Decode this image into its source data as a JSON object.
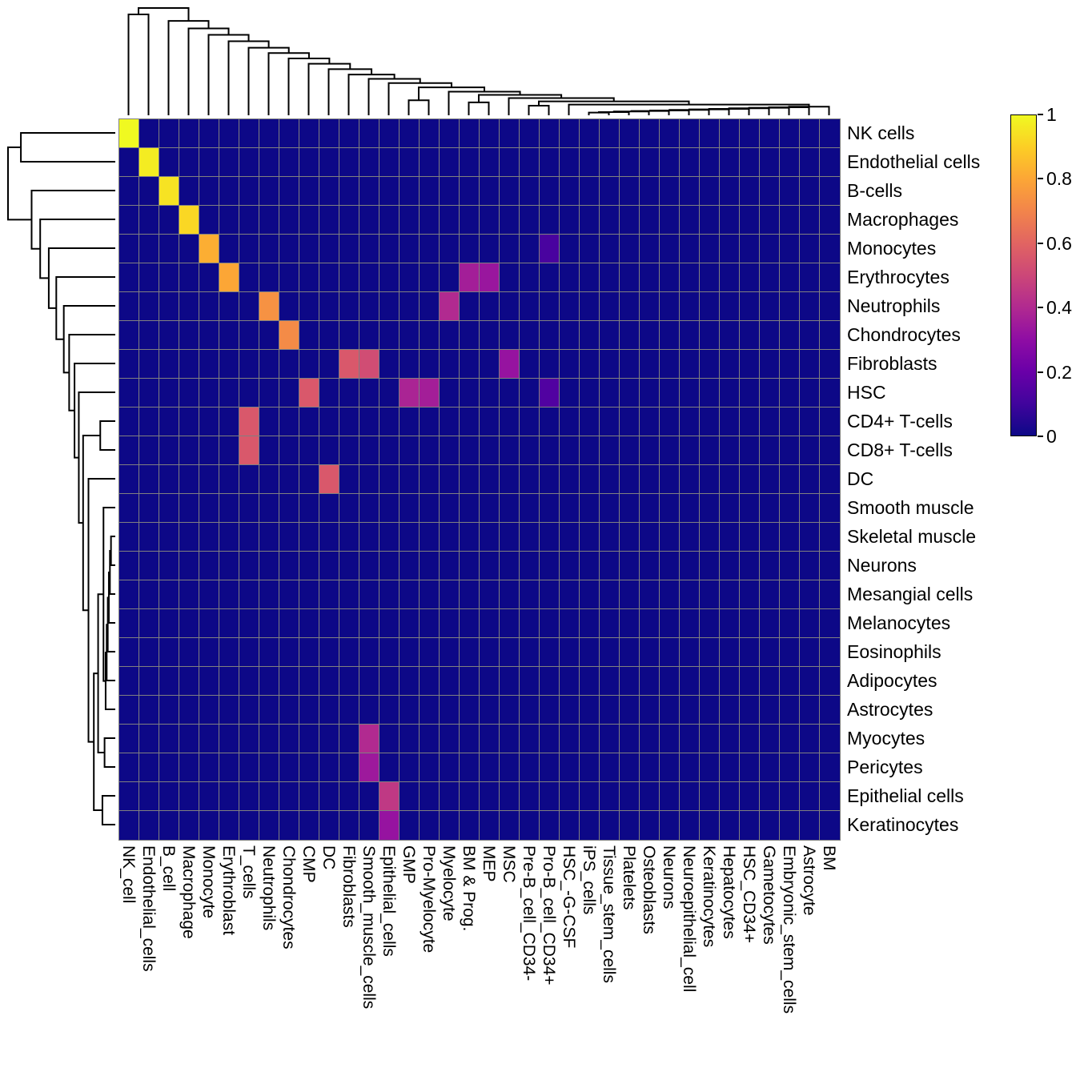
{
  "figure": {
    "background": "#ffffff",
    "text_color": "#000000"
  },
  "chart_data": {
    "type": "heatmap",
    "title": "",
    "xlabel": "",
    "ylabel": "",
    "rows": [
      "NK cells",
      "Endothelial cells",
      "B-cells",
      "Macrophages",
      "Monocytes",
      "Erythrocytes",
      "Neutrophils",
      "Chondrocytes",
      "Fibroblasts",
      "HSC",
      "CD4+ T-cells",
      "CD8+ T-cells",
      "DC",
      "Smooth muscle",
      "Skeletal muscle",
      "Neurons",
      "Mesangial cells",
      "Melanocytes",
      "Eosinophils",
      "Adipocytes",
      "Astrocytes",
      "Myocytes",
      "Pericytes",
      "Epithelial cells",
      "Keratinocytes"
    ],
    "columns": [
      "NK_cell",
      "Endothelial_cells",
      "B_cell",
      "Macrophage",
      "Monocyte",
      "Erythroblast",
      "T_cells",
      "Neutrophils",
      "Chondrocytes",
      "CMP",
      "DC",
      "Fibroblasts",
      "Smooth_muscle_cells",
      "Epithelial_cells",
      "GMP",
      "Pro-Myelocyte",
      "Myelocyte",
      "BM & Prog.",
      "MEP",
      "MSC",
      "Pre-B_cell_CD34-",
      "Pro-B_cell_CD34+",
      "HSC_-G-CSF",
      "iPS_cells",
      "Tissue_stem_cells",
      "Platelets",
      "Osteoblasts",
      "Neurons",
      "Neuroepithelial_cell",
      "Keratinocytes",
      "Hepatocytes",
      "HSC_CD34+",
      "Gametocytes",
      "Embryonic_stem_cells",
      "Astrocyte",
      "BM"
    ],
    "default_value": 0,
    "value_range": [
      0,
      1
    ],
    "cells": [
      [
        1,
        1,
        1.0
      ],
      [
        2,
        2,
        0.97
      ],
      [
        3,
        3,
        0.95
      ],
      [
        4,
        4,
        0.92
      ],
      [
        5,
        5,
        0.82
      ],
      [
        5,
        22,
        0.12
      ],
      [
        6,
        6,
        0.8
      ],
      [
        6,
        18,
        0.36
      ],
      [
        6,
        19,
        0.33
      ],
      [
        7,
        8,
        0.74
      ],
      [
        7,
        17,
        0.4
      ],
      [
        8,
        9,
        0.72
      ],
      [
        9,
        12,
        0.56
      ],
      [
        9,
        13,
        0.52
      ],
      [
        9,
        20,
        0.32
      ],
      [
        10,
        10,
        0.56
      ],
      [
        10,
        15,
        0.38
      ],
      [
        10,
        16,
        0.36
      ],
      [
        10,
        22,
        0.14
      ],
      [
        11,
        7,
        0.56
      ],
      [
        12,
        7,
        0.56
      ],
      [
        13,
        11,
        0.56
      ],
      [
        22,
        13,
        0.4
      ],
      [
        23,
        13,
        0.34
      ],
      [
        24,
        14,
        0.45
      ],
      [
        25,
        14,
        0.32
      ]
    ],
    "colormap": "plasma",
    "colormap_stops": [
      [
        0.0,
        "#0d0887"
      ],
      [
        0.1,
        "#41049d"
      ],
      [
        0.2,
        "#6a00a8"
      ],
      [
        0.3,
        "#8f0da4"
      ],
      [
        0.4,
        "#b12a90"
      ],
      [
        0.5,
        "#cc4778"
      ],
      [
        0.6,
        "#e16462"
      ],
      [
        0.7,
        "#f2844b"
      ],
      [
        0.8,
        "#fca636"
      ],
      [
        0.9,
        "#fcce25"
      ],
      [
        1.0,
        "#f0f921"
      ]
    ],
    "grid_color": "#808080",
    "dendrogram_color": "#000000",
    "colorbar": {
      "position": "right",
      "ticks": [
        {
          "value": 1,
          "label": "1"
        },
        {
          "value": 0.8,
          "label": "0.8"
        },
        {
          "value": 0.6,
          "label": "0.6"
        },
        {
          "value": 0.4,
          "label": "0.4"
        },
        {
          "value": 0.2,
          "label": "0.2"
        },
        {
          "value": 0,
          "label": "0"
        }
      ]
    },
    "col_dendrogram_merges": [
      [
        -24,
        -25,
        0.025
      ],
      [
        1,
        -26,
        0.03
      ],
      [
        2,
        -27,
        0.035
      ],
      [
        3,
        -28,
        0.04
      ],
      [
        4,
        -29,
        0.045
      ],
      [
        5,
        -30,
        0.05
      ],
      [
        6,
        -31,
        0.055
      ],
      [
        7,
        -32,
        0.06
      ],
      [
        8,
        -33,
        0.065
      ],
      [
        9,
        -34,
        0.07
      ],
      [
        10,
        -35,
        0.075
      ],
      [
        11,
        -36,
        0.08
      ],
      [
        -23,
        12,
        0.1
      ],
      [
        -21,
        -22,
        0.09
      ],
      [
        14,
        13,
        0.13
      ],
      [
        -20,
        15,
        0.16
      ],
      [
        -18,
        -19,
        0.12
      ],
      [
        17,
        16,
        0.19
      ],
      [
        -17,
        18,
        0.22
      ],
      [
        -15,
        -16,
        0.14
      ],
      [
        20,
        19,
        0.26
      ],
      [
        -14,
        21,
        0.3
      ],
      [
        -13,
        22,
        0.34
      ],
      [
        -12,
        23,
        0.38
      ],
      [
        -11,
        24,
        0.43
      ],
      [
        -10,
        25,
        0.48
      ],
      [
        -9,
        26,
        0.53
      ],
      [
        -8,
        27,
        0.58
      ],
      [
        -7,
        28,
        0.63
      ],
      [
        -6,
        29,
        0.69
      ],
      [
        -5,
        30,
        0.75
      ],
      [
        -4,
        31,
        0.81
      ],
      [
        -3,
        32,
        0.88
      ],
      [
        -1,
        -2,
        0.94
      ],
      [
        34,
        33,
        1.0
      ]
    ],
    "row_dendrogram_merges": [
      [
        -15,
        -16,
        0.04
      ],
      [
        1,
        -17,
        0.05
      ],
      [
        2,
        -18,
        0.06
      ],
      [
        3,
        -19,
        0.07
      ],
      [
        4,
        -20,
        0.08
      ],
      [
        5,
        -21,
        0.09
      ],
      [
        -14,
        6,
        0.11
      ],
      [
        -22,
        -23,
        0.1
      ],
      [
        7,
        8,
        0.16
      ],
      [
        -24,
        -25,
        0.12
      ],
      [
        9,
        10,
        0.2
      ],
      [
        -13,
        11,
        0.25
      ],
      [
        -11,
        -12,
        0.14
      ],
      [
        13,
        12,
        0.3
      ],
      [
        -10,
        14,
        0.34
      ],
      [
        -9,
        15,
        0.38
      ],
      [
        -8,
        16,
        0.43
      ],
      [
        -7,
        17,
        0.48
      ],
      [
        -6,
        18,
        0.55
      ],
      [
        -5,
        19,
        0.62
      ],
      [
        -4,
        20,
        0.7
      ],
      [
        -3,
        21,
        0.78
      ],
      [
        -1,
        -2,
        0.88
      ],
      [
        23,
        22,
        1.0
      ]
    ]
  }
}
